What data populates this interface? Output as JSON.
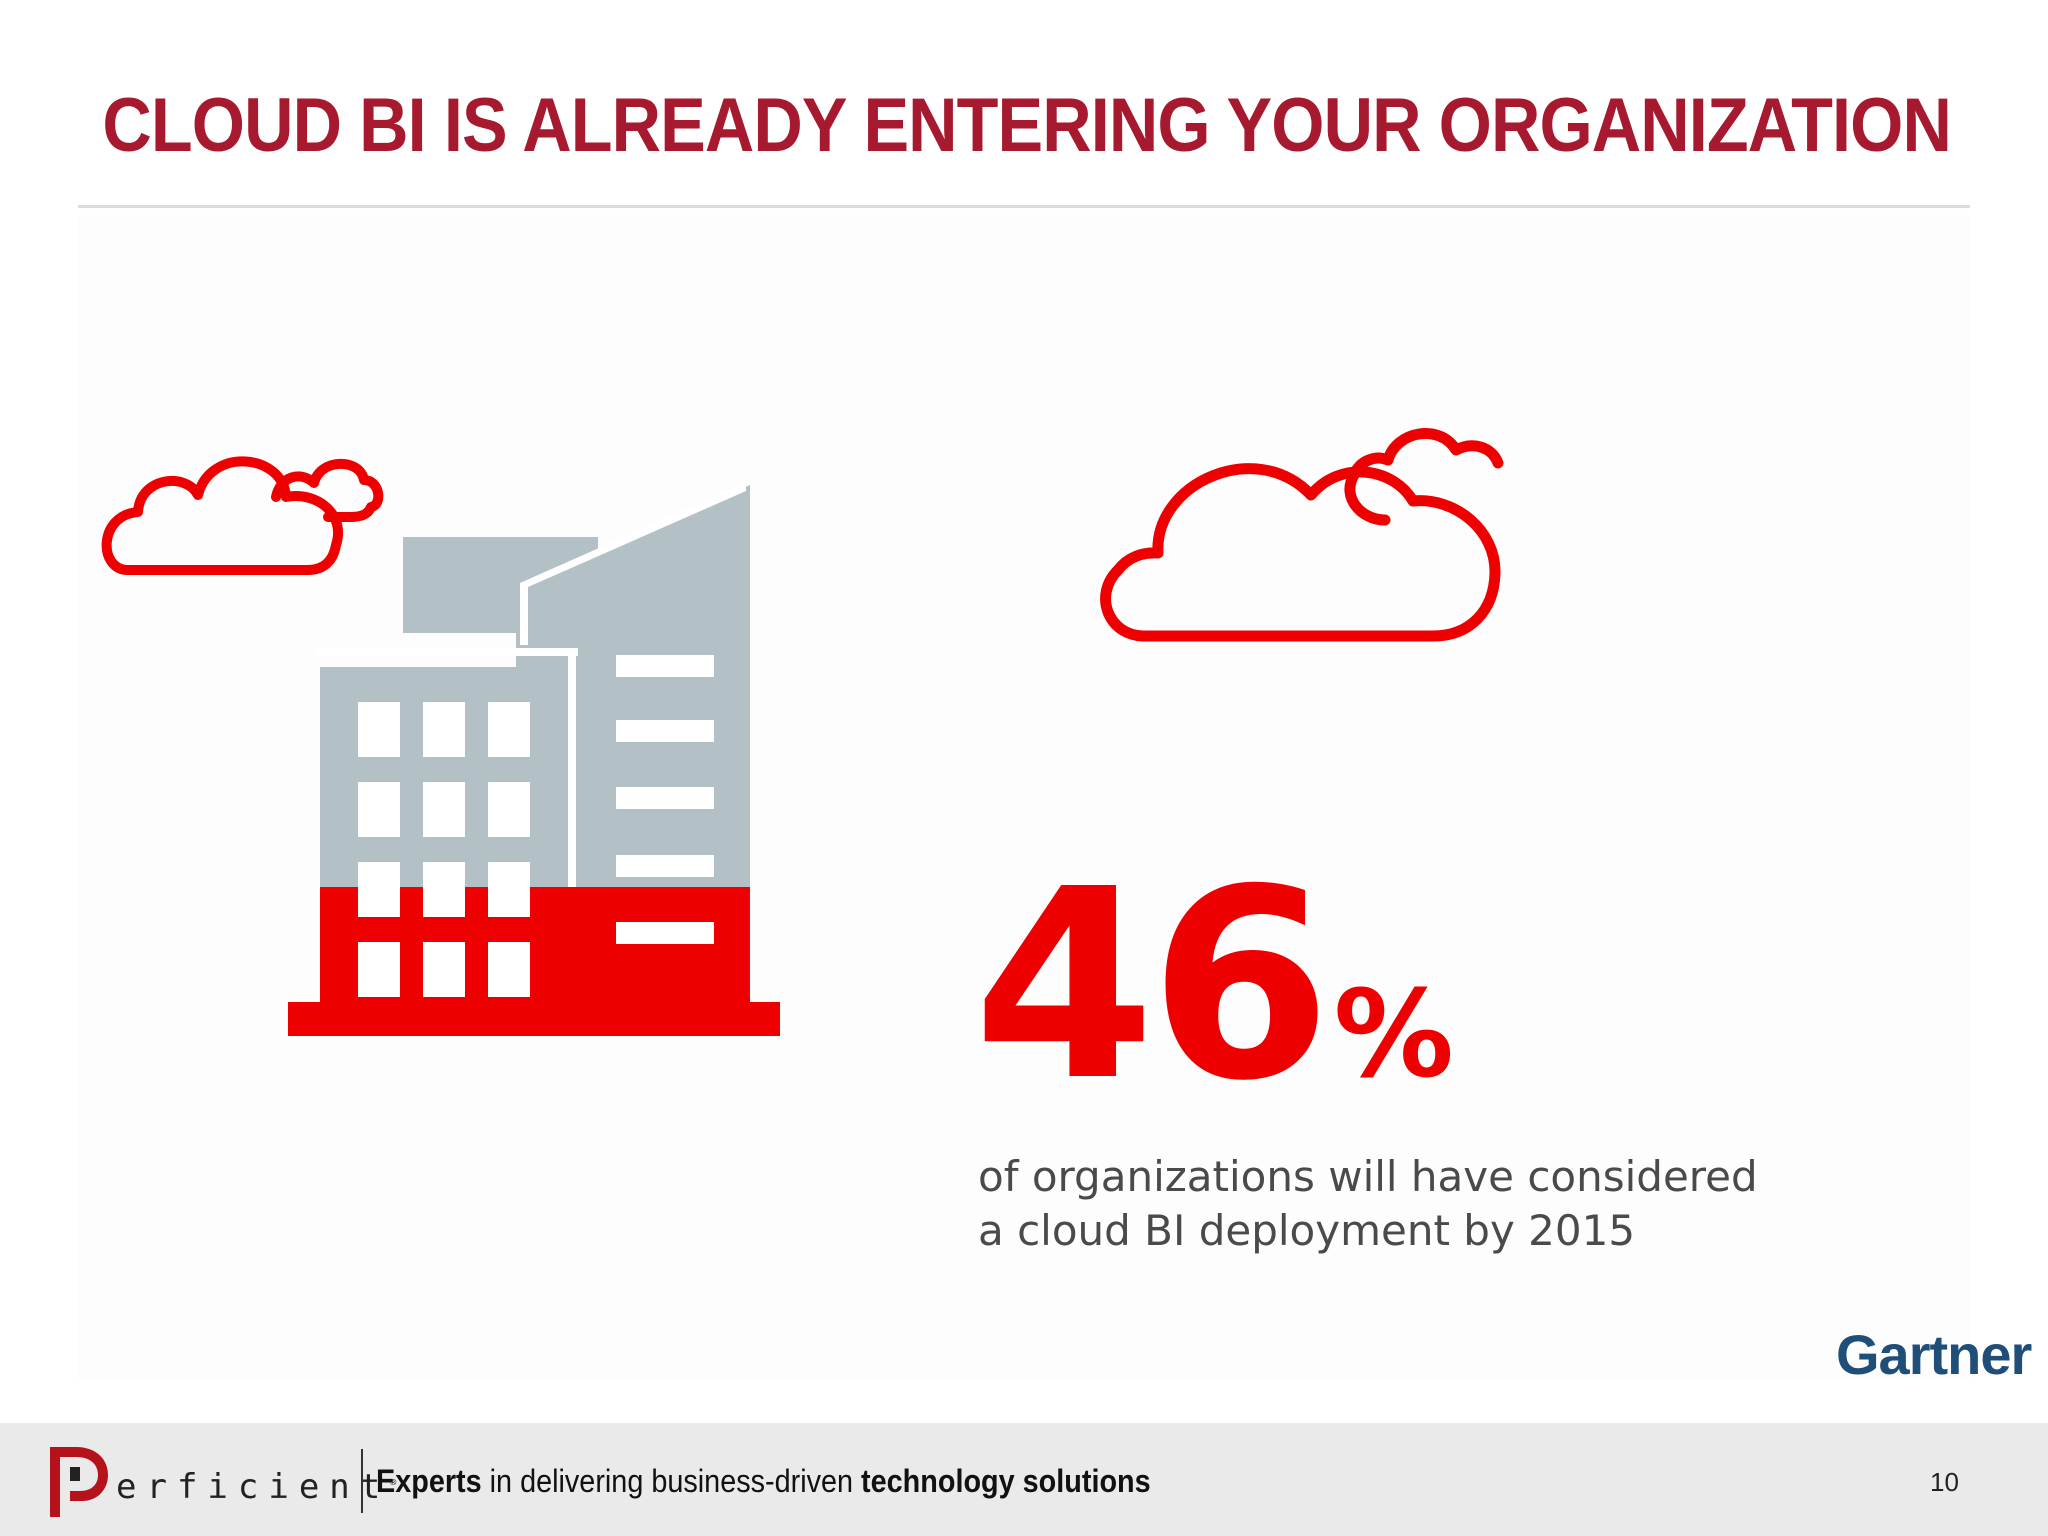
{
  "slide": {
    "title": "CLOUD BI IS ALREADY ENTERING YOUR ORGANIZATION"
  },
  "stat": {
    "value": "46",
    "unit": "%",
    "caption_line1": "of organizations will have considered",
    "caption_line2": "a cloud BI deployment by 2015",
    "source": "Gartner"
  },
  "footer": {
    "logo_text": "erficient",
    "tagline_bold_1": "Experts",
    "tagline_mid": " in delivering business-driven ",
    "tagline_bold_2": "technology solutions",
    "page_number": "10"
  },
  "icons": [
    "cloud-icon",
    "building-icon",
    "perficient-logo-icon"
  ],
  "colors": {
    "title": "#a6192e",
    "accent_red": "#ee0000",
    "building_gray": "#b3c0c6",
    "gartner_blue": "#1f4e79",
    "footer_bg": "#eaeaea"
  }
}
